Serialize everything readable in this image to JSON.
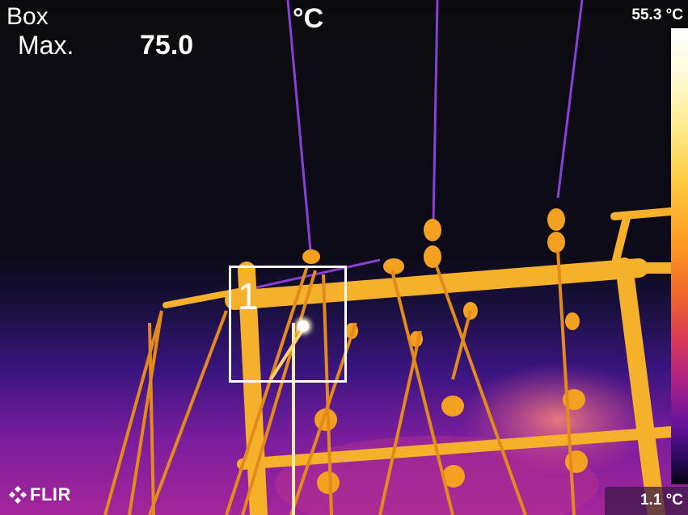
{
  "measurement": {
    "tool_label": "Box",
    "stat_label": "Max.",
    "stat_value": "75.0",
    "unit": "°C",
    "roi_number": "1"
  },
  "scale": {
    "max_label": "55.3 °C",
    "min_label": "1.1 °C",
    "palette": [
      "#ffffff",
      "#ffe98a",
      "#ffc940",
      "#ff9a22",
      "#d83a55",
      "#a8208a",
      "#66129a",
      "#05030f"
    ]
  },
  "brand": {
    "logo_text": "FLIR",
    "logo_icon": "flir-logo-icon"
  }
}
